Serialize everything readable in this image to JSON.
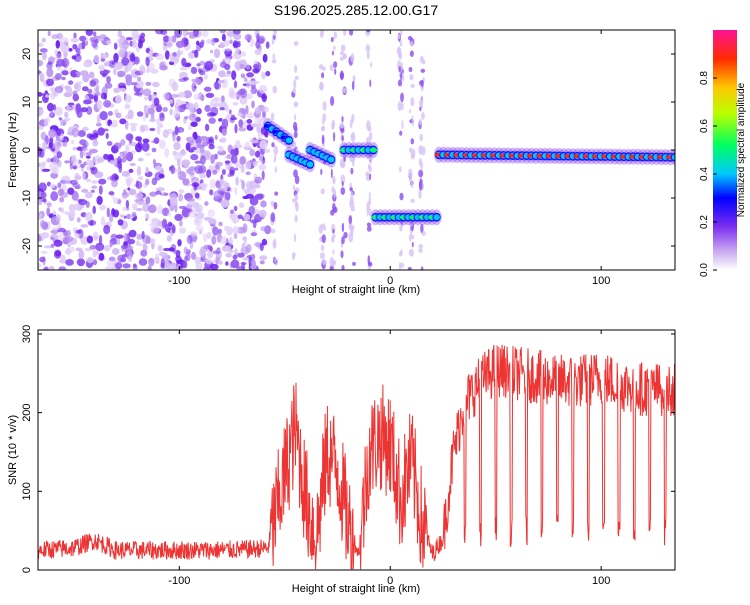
{
  "title": "S196.2025.285.12.00.G17",
  "chart_data": [
    {
      "type": "heatmap",
      "xlabel": "Height of straight line (km)",
      "ylabel": "Frequency (Hz)",
      "xlim": [
        -167,
        135
      ],
      "ylim": [
        -25,
        25
      ],
      "x_ticks": [
        -100,
        0,
        100
      ],
      "y_ticks": [
        -20,
        -10,
        0,
        10,
        20
      ],
      "colorbar": {
        "label": "Normalized spectral amplitude",
        "range": [
          0,
          1
        ],
        "ticks": [
          0.0,
          0.2,
          0.4,
          0.6,
          0.8
        ]
      },
      "noise_region": {
        "x": [
          -167,
          -58
        ],
        "y": [
          -25,
          25
        ]
      },
      "ridge_segments": [
        {
          "x": [
            -58,
            -48
          ],
          "y": [
            5,
            2
          ],
          "peak": 0.35
        },
        {
          "x": [
            -48,
            -38
          ],
          "y": [
            -1,
            -3
          ],
          "peak": 0.4
        },
        {
          "x": [
            -38,
            -28
          ],
          "y": [
            0,
            -2
          ],
          "peak": 0.45
        },
        {
          "x": [
            -22,
            -8
          ],
          "y": [
            0,
            0
          ],
          "peak": 0.55
        },
        {
          "x": [
            -7,
            22
          ],
          "y": [
            -14,
            -14
          ],
          "peak": 0.6
        },
        {
          "x": [
            23,
            135
          ],
          "y": [
            -1,
            -1.5
          ],
          "peak": 0.9
        }
      ]
    },
    {
      "type": "line",
      "xlabel": "Height of straight line (km)",
      "ylabel": "SNR (10 * v/v)",
      "xlim": [
        -167,
        135
      ],
      "ylim": [
        0,
        305
      ],
      "x_ticks": [
        -100,
        0,
        100
      ],
      "y_ticks": [
        0,
        100,
        200,
        300
      ],
      "line_color": "#ee3333",
      "series": [
        {
          "x": [
            -167,
            -150,
            -140,
            -130,
            -110,
            -90,
            -70,
            -58,
            -50,
            -45,
            -40,
            -35,
            -30,
            -25,
            -20,
            -15,
            -10,
            -5,
            0,
            5,
            10,
            15,
            20,
            25,
            30,
            35,
            40,
            45,
            50,
            60,
            70,
            80,
            90,
            100,
            110,
            120,
            135
          ],
          "values": [
            25,
            28,
            38,
            25,
            25,
            25,
            26,
            28,
            120,
            180,
            90,
            40,
            150,
            130,
            60,
            20,
            150,
            170,
            160,
            90,
            140,
            60,
            20,
            40,
            150,
            210,
            230,
            245,
            255,
            250,
            245,
            240,
            240,
            245,
            235,
            230,
            230
          ]
        }
      ]
    }
  ]
}
